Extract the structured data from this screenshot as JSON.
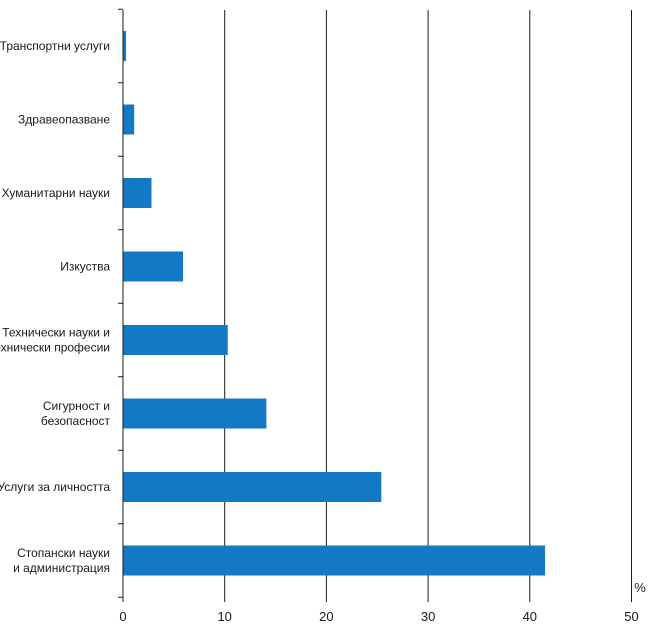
{
  "chart_data": {
    "type": "bar",
    "orientation": "horizontal",
    "categories": [
      [
        "Транспортни услуги"
      ],
      [
        "Здравеопазване"
      ],
      [
        "Хуманитарни науки"
      ],
      [
        "Изкуства"
      ],
      [
        "Технически науки и",
        "технически професии"
      ],
      [
        "Сигурност и",
        "безопасност"
      ],
      [
        "Услуги за личността"
      ],
      [
        "Стопански науки",
        "и администрация"
      ]
    ],
    "values": [
      0.3,
      1.1,
      2.8,
      5.9,
      10.3,
      14.1,
      25.4,
      41.5
    ],
    "x_ticks": [
      "0",
      "10",
      "20",
      "30",
      "40",
      "50"
    ],
    "xlim": [
      0,
      50
    ],
    "xlabel": "%",
    "bar_color": "#1479c4",
    "grid": "vertical lines at major ticks"
  }
}
